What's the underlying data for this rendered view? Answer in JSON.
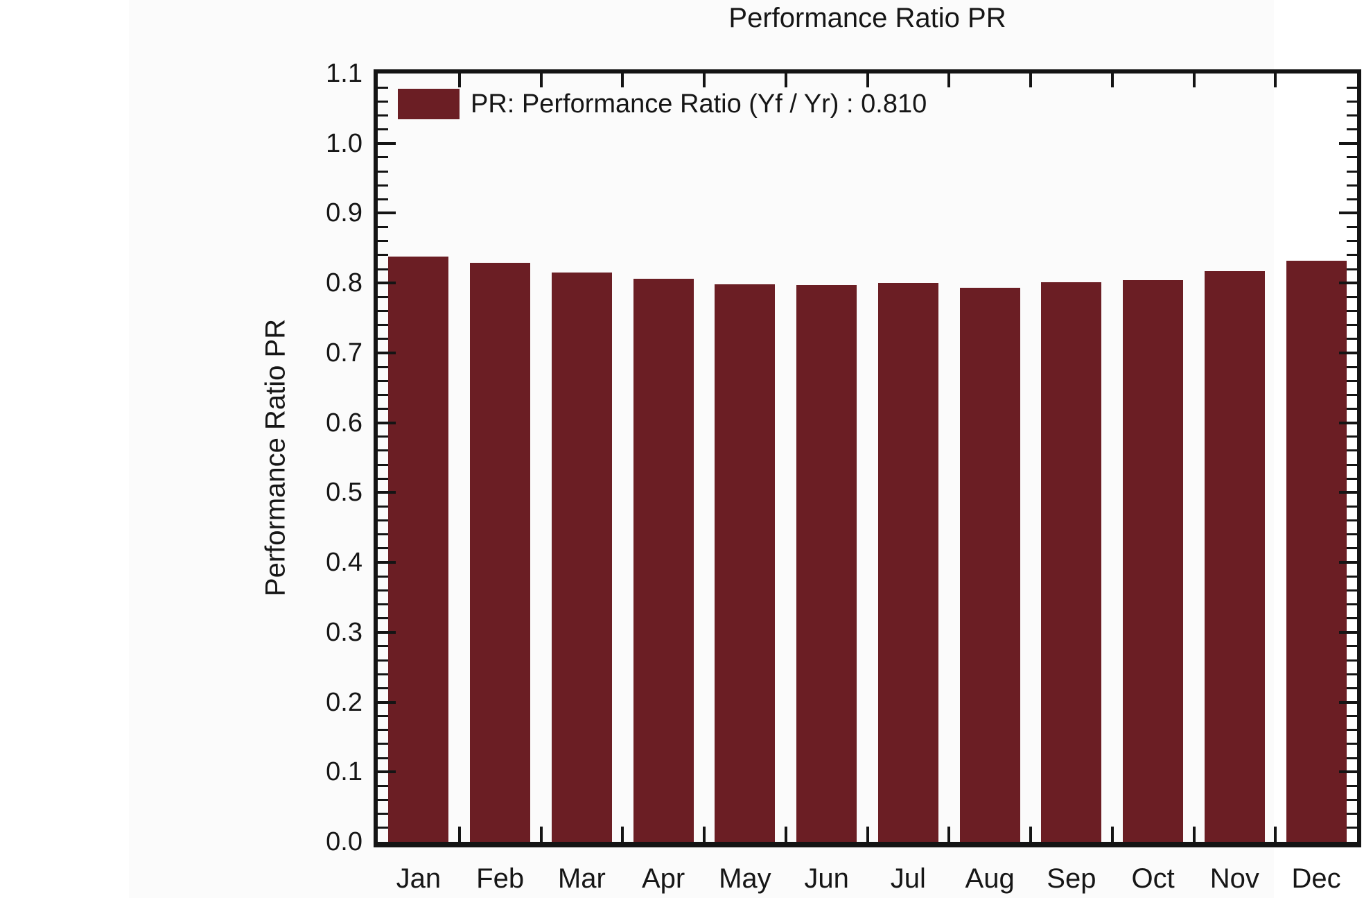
{
  "chart_data": {
    "type": "bar",
    "title": "Performance Ratio PR",
    "ylabel": "Performance Ratio PR",
    "xlabel": "",
    "categories": [
      "Jan",
      "Feb",
      "Mar",
      "Apr",
      "May",
      "Jun",
      "Jul",
      "Aug",
      "Sep",
      "Oct",
      "Nov",
      "Dec"
    ],
    "values": [
      0.838,
      0.829,
      0.815,
      0.806,
      0.798,
      0.797,
      0.8,
      0.793,
      0.801,
      0.804,
      0.817,
      0.832
    ],
    "annual_value": "0.810",
    "legend_label": "PR: Performance Ratio (Yf / Yr) : 0.810",
    "legend_position": "top-left",
    "ylim": [
      0.0,
      1.1
    ],
    "y_major_step": 0.1,
    "y_minor_step": 0.02,
    "y_tick_decimals": 1,
    "grid": false,
    "colors": {
      "bar": "#6B1E24",
      "axis": "#141414",
      "text": "#161616",
      "figure_bg": "#fbfbfb",
      "page_bg": "#ffffff"
    }
  }
}
